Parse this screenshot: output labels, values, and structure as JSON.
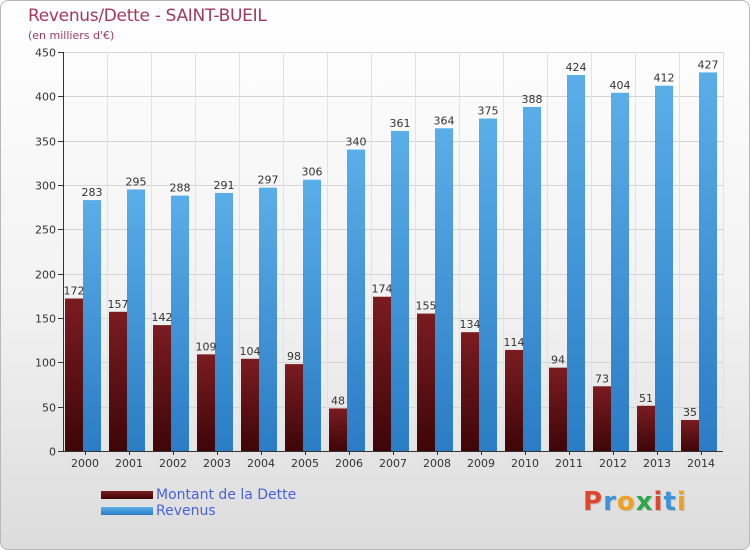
{
  "title": "Revenus/Dette - SAINT-BUEIL",
  "subtitle": "(en milliers d'€)",
  "legend": {
    "dette_label": "Montant de la Dette",
    "revenus_label": "Revenus"
  },
  "logo": {
    "letters": [
      "P",
      "r",
      "o",
      "x",
      "i",
      "t",
      "i"
    ]
  },
  "colors": {
    "dette": "#6e1418",
    "revenus": "#3a94dc",
    "title": "#a03a5a",
    "legend_text": "#4a62d8",
    "logo": [
      "#e0452e",
      "#3a94dc",
      "#f0a020",
      "#2aa84a",
      "#e0452e",
      "#3a94dc",
      "#f0a020"
    ]
  },
  "chart_data": {
    "type": "bar",
    "title": "Revenus/Dette - SAINT-BUEIL",
    "subtitle": "(en milliers d'€)",
    "categories": [
      "2000",
      "2001",
      "2002",
      "2003",
      "2004",
      "2005",
      "2006",
      "2007",
      "2008",
      "2009",
      "2010",
      "2011",
      "2012",
      "2013",
      "2014"
    ],
    "series": [
      {
        "name": "Montant de la Dette",
        "values": [
          172,
          157,
          142,
          109,
          104,
          98,
          48,
          174,
          155,
          134,
          114,
          94,
          73,
          51,
          35
        ]
      },
      {
        "name": "Revenus",
        "values": [
          283,
          295,
          288,
          291,
          297,
          306,
          340,
          361,
          364,
          375,
          388,
          424,
          404,
          412,
          427
        ]
      }
    ],
    "ylim": [
      0,
      450
    ],
    "yticks": [
      0,
      50,
      100,
      150,
      200,
      250,
      300,
      350,
      400,
      450
    ],
    "grid": true,
    "legend_position": "bottom-left"
  }
}
